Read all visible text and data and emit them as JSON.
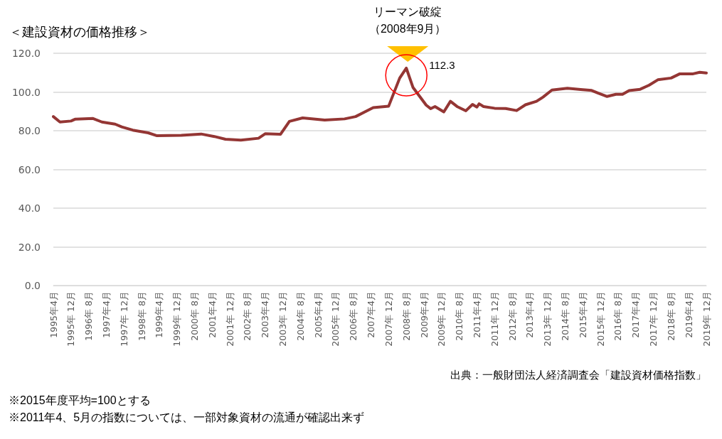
{
  "chart_data": {
    "type": "line",
    "title": "＜建設資材の価格推移＞",
    "x": [
      "1995-04",
      "1995-07",
      "1995-12",
      "1996-02",
      "1996-10",
      "1997-02",
      "1997-08",
      "1997-11",
      "1998-04",
      "1998-11",
      "1999-03",
      "2000-02",
      "2000-11",
      "2001-05",
      "2001-10",
      "2002-05",
      "2003-01",
      "2003-04",
      "2003-11",
      "2004-03",
      "2004-09",
      "2005-07",
      "2006-04",
      "2006-09",
      "2007-05",
      "2007-12",
      "2008-05",
      "2008-08",
      "2008-11",
      "2009-05",
      "2009-07",
      "2009-09",
      "2010-01",
      "2010-04",
      "2010-07",
      "2010-11",
      "2011-02",
      "2011-04",
      "2011-05",
      "2011-07",
      "2011-12",
      "2012-05",
      "2012-10",
      "2013-02",
      "2013-07",
      "2013-10",
      "2014-02",
      "2014-09",
      "2015-03",
      "2015-08",
      "2015-11",
      "2016-03",
      "2016-07",
      "2016-10",
      "2017-01",
      "2017-06",
      "2017-10",
      "2018-02",
      "2018-08",
      "2018-12",
      "2019-06",
      "2019-09",
      "2019-12"
    ],
    "series": [
      {
        "color": "#943634",
        "values": [
          87.3,
          84.5,
          85.0,
          86.0,
          86.3,
          84.5,
          83.4,
          82.0,
          80.3,
          78.9,
          77.4,
          77.6,
          78.3,
          77.0,
          75.6,
          75.1,
          76.1,
          78.4,
          78.2,
          84.8,
          86.6,
          85.5,
          86.1,
          87.3,
          91.9,
          92.7,
          107.2,
          112.3,
          102.4,
          93.2,
          91.4,
          92.5,
          89.7,
          95.2,
          92.5,
          90.3,
          93.6,
          92.2,
          93.9,
          92.5,
          91.6,
          91.5,
          90.4,
          93.4,
          95.2,
          97.4,
          101.0,
          101.9,
          101.3,
          100.8,
          99.4,
          97.7,
          98.8,
          98.8,
          100.7,
          101.4,
          103.5,
          106.3,
          107.2,
          109.4,
          109.4,
          110.2,
          109.8
        ]
      }
    ],
    "xlim": [
      "1995-04",
      "2019-12"
    ],
    "xticks": [
      {
        "value": "1995-04",
        "label": "1995年4月"
      },
      {
        "value": "1995-12",
        "label": "1995年 12月"
      },
      {
        "value": "1996-08",
        "label": "1996年 8月"
      },
      {
        "value": "1997-04",
        "label": "1997年4月"
      },
      {
        "value": "1997-12",
        "label": "1997年 12月"
      },
      {
        "value": "1998-08",
        "label": "1998年 8月"
      },
      {
        "value": "1999-04",
        "label": "1999年4月"
      },
      {
        "value": "1999-12",
        "label": "1999年 12月"
      },
      {
        "value": "2000-08",
        "label": "2000年 8月"
      },
      {
        "value": "2001-04",
        "label": "2001年4月"
      },
      {
        "value": "2001-12",
        "label": "2001年 12月"
      },
      {
        "value": "2002-08",
        "label": "2002年 8月"
      },
      {
        "value": "2003-04",
        "label": "2003年4月"
      },
      {
        "value": "2003-12",
        "label": "2003年 12月"
      },
      {
        "value": "2004-08",
        "label": "2004年 8月"
      },
      {
        "value": "2005-04",
        "label": "2005年4月"
      },
      {
        "value": "2005-12",
        "label": "2005年 12月"
      },
      {
        "value": "2006-08",
        "label": "2006年 8月"
      },
      {
        "value": "2007-04",
        "label": "2007年4月"
      },
      {
        "value": "2007-12",
        "label": "2007年 12月"
      },
      {
        "value": "2008-08",
        "label": "2008年 8月"
      },
      {
        "value": "2009-04",
        "label": "2009年4月"
      },
      {
        "value": "2009-12",
        "label": "2009年 12月"
      },
      {
        "value": "2010-08",
        "label": "2010年 8月"
      },
      {
        "value": "2011-04",
        "label": "2011年4月"
      },
      {
        "value": "2011-12",
        "label": "2011年 12月"
      },
      {
        "value": "2012-08",
        "label": "2012年 8月"
      },
      {
        "value": "2013-04",
        "label": "2013年4月"
      },
      {
        "value": "2013-12",
        "label": "2013年 12月"
      },
      {
        "value": "2014-08",
        "label": "2014年 8月"
      },
      {
        "value": "2015-04",
        "label": "2015年4月"
      },
      {
        "value": "2015-12",
        "label": "2015年 12月"
      },
      {
        "value": "2016-08",
        "label": "2016年 8月"
      },
      {
        "value": "2017-04",
        "label": "2017年4月"
      },
      {
        "value": "2017-12",
        "label": "2017年 12月"
      },
      {
        "value": "2018-08",
        "label": "2018年 8月"
      },
      {
        "value": "2019-04",
        "label": "2019年4月"
      },
      {
        "value": "2019-12",
        "label": "2019年 12月"
      }
    ],
    "ylim": [
      0,
      120
    ],
    "yticks": [
      {
        "value": 0,
        "label": "0.0"
      },
      {
        "value": 20,
        "label": "20.0"
      },
      {
        "value": 40,
        "label": "40.0"
      },
      {
        "value": 60,
        "label": "60.0"
      },
      {
        "value": 80,
        "label": "80.0"
      },
      {
        "value": 100,
        "label": "100.0"
      },
      {
        "value": 120,
        "label": "120.0"
      }
    ],
    "grid": "y",
    "marker": "none",
    "line_style": "solid",
    "annotations": [
      "リーマン破綻",
      "（2008年9月）",
      {
        "text": "112.3",
        "x": "2008-08",
        "y": 112.3
      },
      "出典：一般財団法人経済調査会「建設資材価格指数」",
      "※2015年度平均=100とする",
      "※2011年4、5月の指数については、一部対象資材の流通が確認出来ず"
    ]
  }
}
